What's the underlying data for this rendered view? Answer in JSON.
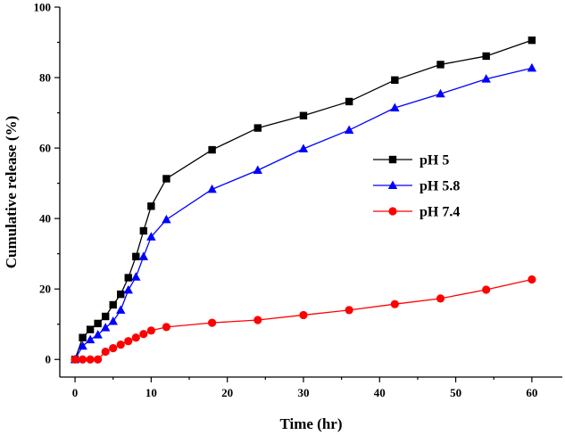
{
  "chart_data": {
    "type": "line",
    "title": "",
    "xlabel": "Time (hr)",
    "ylabel": "Cumulative release (%)",
    "xlim": [
      -2,
      64
    ],
    "ylim": [
      -5,
      100
    ],
    "xticks": [
      0,
      10,
      20,
      30,
      40,
      50,
      60
    ],
    "yticks": [
      0,
      20,
      40,
      60,
      80,
      100
    ],
    "grid": false,
    "legend_position": "center-right",
    "series": [
      {
        "name": "pH 5",
        "color": "#000000",
        "marker": "square",
        "x": [
          0,
          1,
          2,
          3,
          4,
          5,
          6,
          7,
          8,
          9,
          10,
          12,
          18,
          24,
          30,
          36,
          42,
          48,
          54,
          60
        ],
        "y": [
          0,
          6.2,
          8.5,
          10.2,
          12.2,
          15.5,
          18.5,
          23.2,
          29.2,
          36.5,
          43.5,
          51.3,
          59.5,
          65.7,
          69.2,
          73.2,
          79.3,
          83.7,
          86.1,
          90.6
        ]
      },
      {
        "name": "pH 5.8",
        "color": "#0000ff",
        "marker": "triangle",
        "x": [
          0,
          1,
          2,
          3,
          4,
          5,
          6,
          7,
          8,
          9,
          10,
          12,
          18,
          24,
          30,
          36,
          42,
          48,
          54,
          60
        ],
        "y": [
          0,
          3.8,
          5.6,
          7.0,
          9.0,
          10.8,
          14.0,
          19.7,
          23.4,
          29.2,
          34.8,
          39.7,
          48.3,
          53.7,
          59.8,
          65.1,
          71.4,
          75.4,
          79.6,
          82.7
        ]
      },
      {
        "name": "pH 7.4",
        "color": "#ff0000",
        "marker": "circle",
        "x": [
          0,
          1,
          2,
          3,
          4,
          5,
          6,
          7,
          8,
          9,
          10,
          12,
          18,
          24,
          30,
          36,
          42,
          48,
          54,
          60
        ],
        "y": [
          0,
          0,
          0,
          0,
          2.2,
          3.2,
          4.2,
          5.2,
          6.2,
          7.2,
          8.2,
          9.2,
          10.4,
          11.2,
          12.6,
          14.0,
          15.7,
          17.3,
          19.8,
          22.7
        ]
      }
    ]
  }
}
